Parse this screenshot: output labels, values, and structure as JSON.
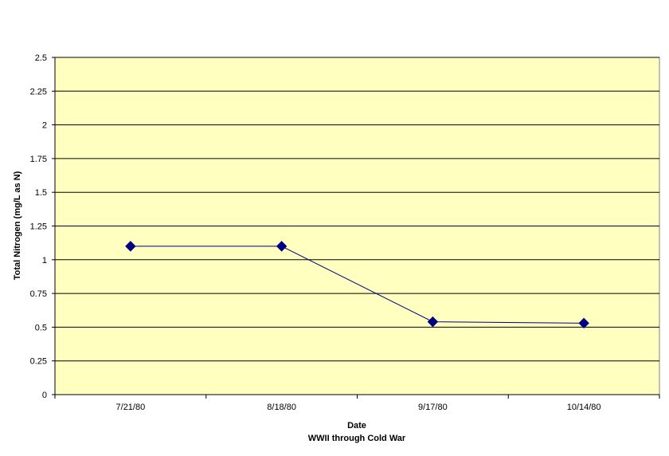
{
  "chart_data": {
    "type": "line",
    "title": "",
    "xlabel": "Date",
    "xlabel_sub": "WWII through Cold War",
    "ylabel": "Total Nitrogen (mg/L as N)",
    "ylim": [
      0,
      2.5
    ],
    "yticks": [
      "0",
      "0.25",
      "0.5",
      "0.75",
      "1",
      "1.25",
      "1.5",
      "1.75",
      "2",
      "2.25",
      "2.5"
    ],
    "ytick_values": [
      0,
      0.25,
      0.5,
      0.75,
      1,
      1.25,
      1.5,
      1.75,
      2,
      2.25,
      2.5
    ],
    "categories": [
      "7/21/80",
      "8/18/80",
      "9/17/80",
      "10/14/80"
    ],
    "series": [
      {
        "values": [
          1.1,
          1.1,
          0.54,
          0.53
        ]
      }
    ],
    "grid": true,
    "legend": "none",
    "colors": {
      "plot_background": "#FFFFC0",
      "gridline": "#000000",
      "line": "#000080",
      "marker": "#000080"
    }
  }
}
